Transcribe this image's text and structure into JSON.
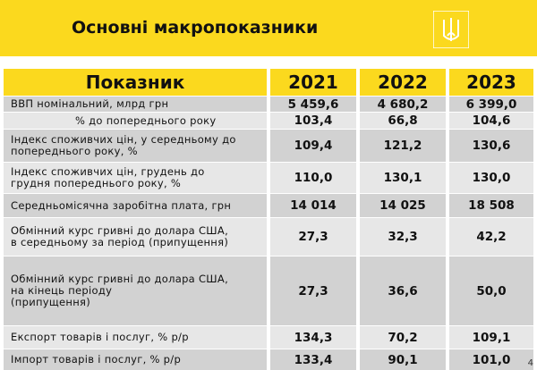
{
  "header": {
    "title": "Основні макропоказники"
  },
  "table": {
    "columns": [
      "Показник",
      "2021",
      "2022",
      "2023"
    ],
    "rows": [
      [
        [
          "ВВП номінальний, млрд грн"
        ],
        "5 459,6",
        "4 680,2",
        "6 399,0"
      ],
      [
        [
          "% до попереднього року"
        ],
        "103,4",
        "66,8",
        "104,6"
      ],
      [
        [
          "Індекс споживчих цін, у середньому до",
          "попереднього року, %"
        ],
        "109,4",
        "121,2",
        "130,6"
      ],
      [
        [
          "Індекс споживчих цін, грудень до",
          "грудня попереднього року, %"
        ],
        "110,0",
        "130,1",
        "130,0"
      ],
      [
        [
          "Середньомісячна заробітна плата, грн"
        ],
        "14 014",
        "14 025",
        "18 508"
      ],
      [
        [
          "Обмінний курс гривні до долара США,",
          "в середньому за період (припущення)"
        ],
        "27,3",
        "32,3",
        "42,2"
      ],
      [
        [
          "Обмінний курс гривні до долара США,",
          "на кінець періоду",
          "(припущення)"
        ],
        "27,3",
        "36,6",
        "50,0"
      ],
      [
        [
          "Експорт товарів і послуг, % р/р"
        ],
        "134,3",
        "70,2",
        "109,1"
      ],
      [
        [
          "Імпорт товарів і послуг, % р/р"
        ],
        "133,4",
        "90,1",
        "101,0"
      ]
    ]
  },
  "page_number": "4"
}
